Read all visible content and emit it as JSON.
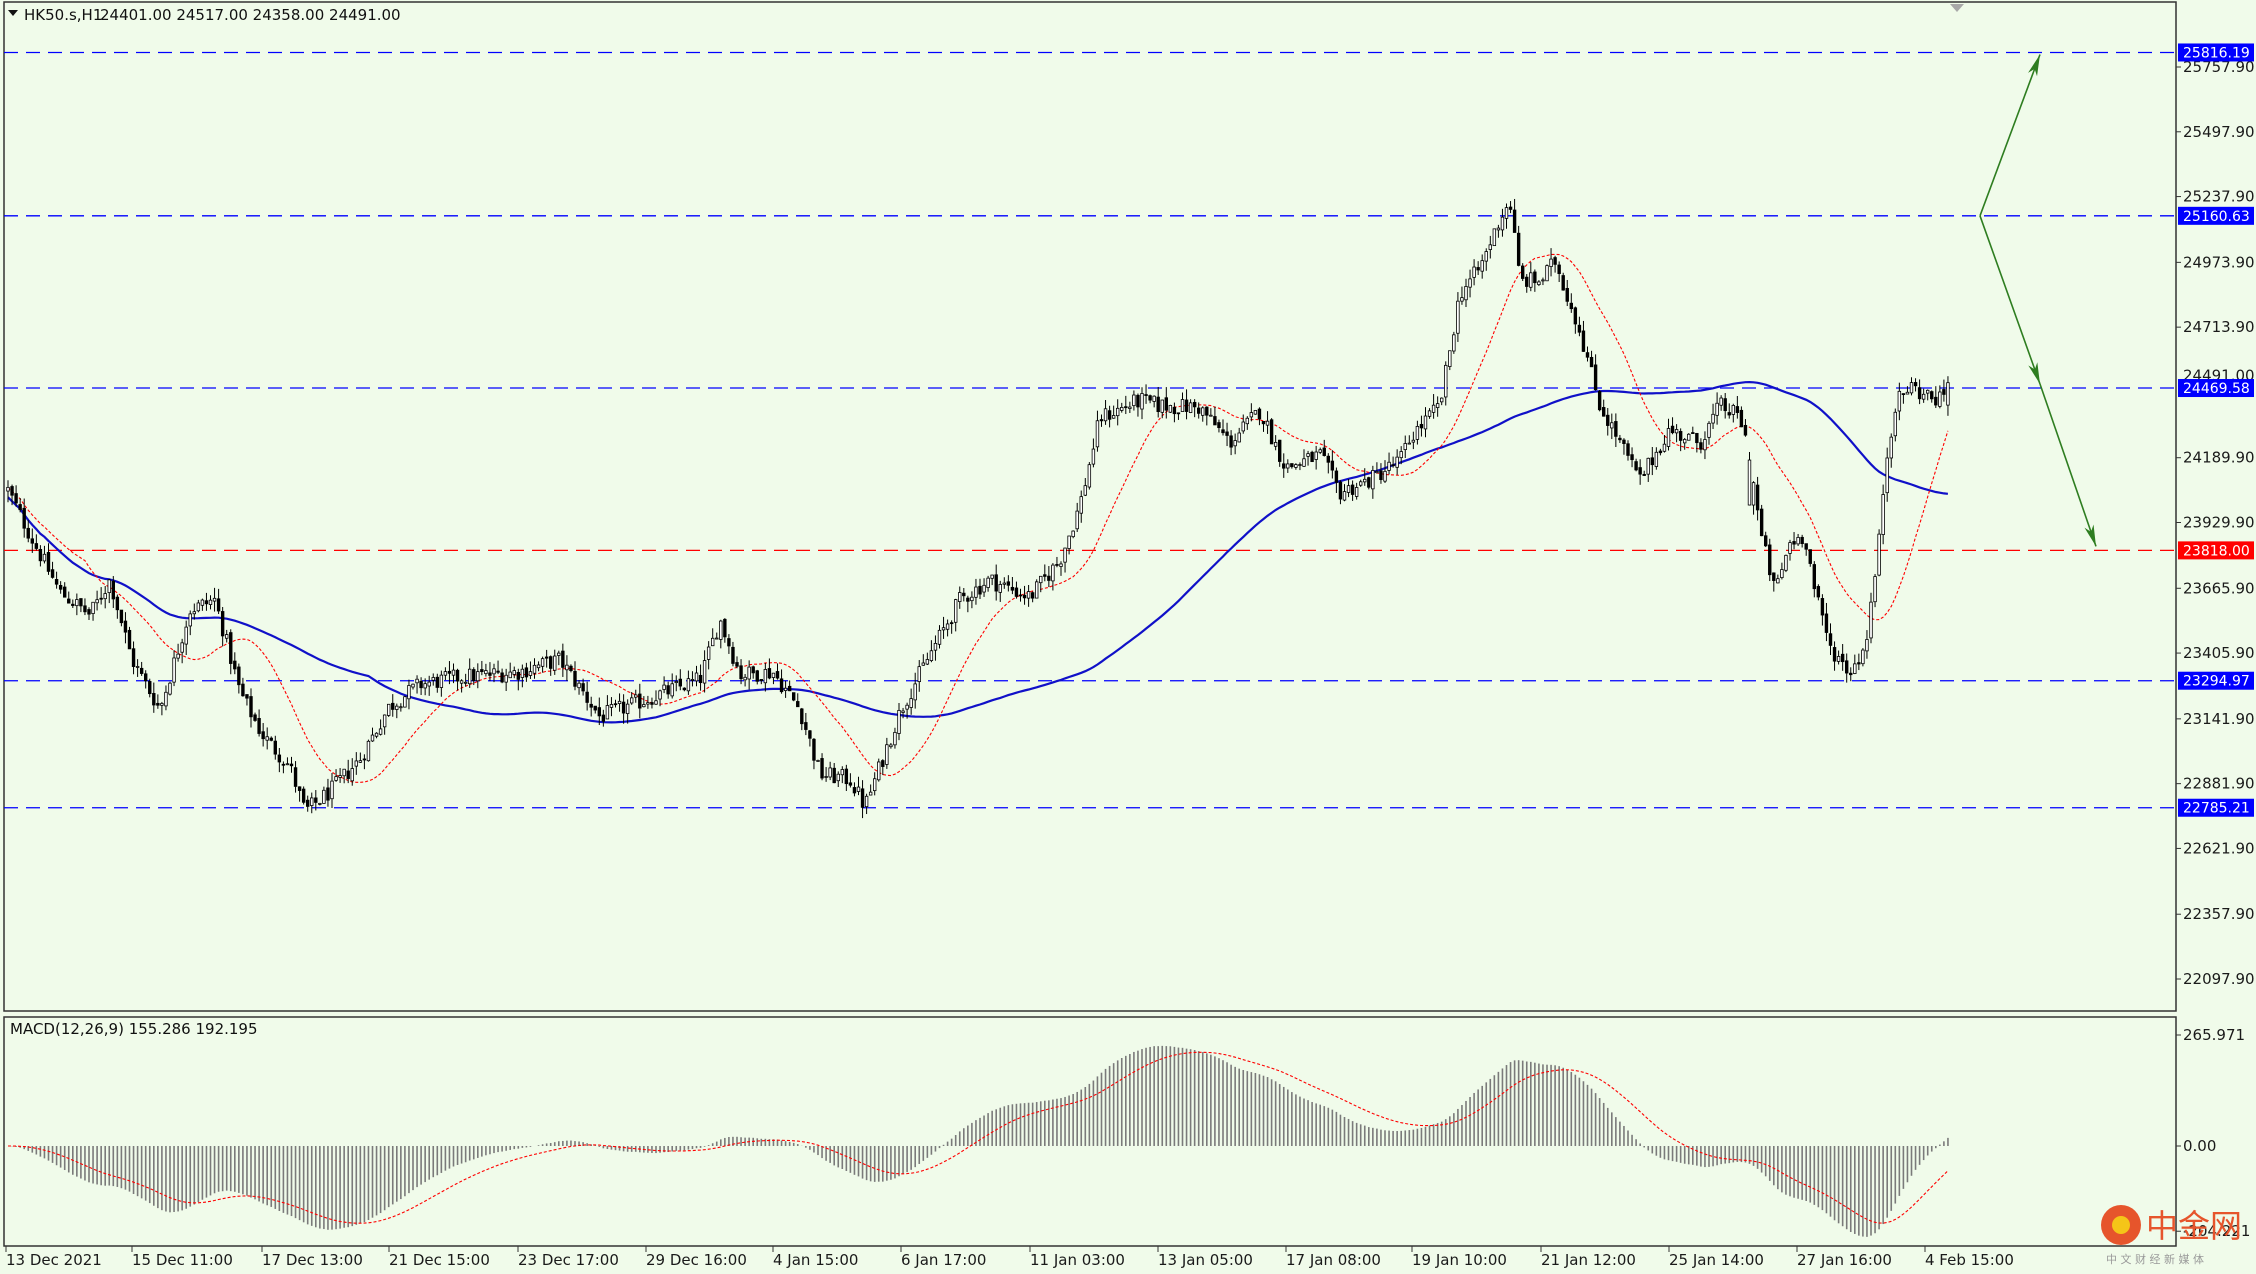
{
  "header": {
    "symbol": "HK50.s,H1",
    "ohlc": "24401.00 24517.00 24358.00 24491.00"
  },
  "macd_header": {
    "label": "MACD(12,26,9) 155.286 192.195"
  },
  "price_axis": {
    "ticks": [
      "25757.90",
      "25497.90",
      "25237.90",
      "24973.90",
      "24713.90",
      "24189.90",
      "23929.90",
      "23665.90",
      "23405.90",
      "23141.90",
      "22881.90",
      "22621.90",
      "22357.90",
      "22097.90"
    ],
    "tick_values": [
      25757.9,
      25497.9,
      25237.9,
      24973.9,
      24713.9,
      24189.9,
      23929.9,
      23665.9,
      23405.9,
      23141.9,
      22881.9,
      22621.9,
      22357.9,
      22097.9
    ],
    "current_price_label": "24491.00"
  },
  "macd_axis": {
    "ticks": [
      "265.971",
      "0.00",
      "-204.221"
    ],
    "tick_values": [
      265.971,
      0,
      -204.221
    ]
  },
  "time_axis": {
    "labels": [
      "13 Dec 2021",
      "15 Dec 11:00",
      "17 Dec 13:00",
      "21 Dec 15:00",
      "23 Dec 17:00",
      "29 Dec 16:00",
      "4 Jan 15:00",
      "6 Jan 17:00",
      "11 Jan 03:00",
      "13 Jan 05:00",
      "17 Jan 08:00",
      "19 Jan 10:00",
      "21 Jan 12:00",
      "25 Jan 14:00",
      "27 Jan 16:00",
      "4 Feb 15:00"
    ]
  },
  "levels": [
    {
      "value": 25816.19,
      "label": "25816.19",
      "color": "#0000ff",
      "style": "dashed"
    },
    {
      "value": 25160.63,
      "label": "25160.63",
      "color": "#0000ff",
      "style": "dashed"
    },
    {
      "value": 24469.58,
      "label": "24469.58",
      "color": "#0000ff",
      "style": "dashed"
    },
    {
      "value": 23818.0,
      "label": "23818.00",
      "color": "#ff0000",
      "style": "dashed"
    },
    {
      "value": 23294.97,
      "label": "23294.97",
      "color": "#0000ff",
      "style": "dashed"
    },
    {
      "value": 22785.21,
      "label": "22785.21",
      "color": "#0000ff",
      "style": "dashed"
    }
  ],
  "colors": {
    "background": "#f0fbea",
    "candle": "#000000",
    "ma_slow": "#1010c8",
    "ma_fast": "#ff0000",
    "arrow": "#2e7d20",
    "macd_hist": "#7a7a7a",
    "macd_signal": "#ff0000"
  },
  "watermark": {
    "text": "中金网",
    "sub": "中 文 财 经 新 媒 体"
  },
  "chart_data": {
    "type": "candlestick",
    "title": "HK50.s,H1",
    "timeframe": "H1",
    "ylim": [
      21990,
      25910
    ],
    "horizontal_levels": [
      25816.19,
      25160.63,
      24469.58,
      23818.0,
      23294.97,
      22785.21
    ],
    "anchor_closes": [
      {
        "x": "13 Dec 2021",
        "close": 24060
      },
      {
        "x": "15 Dec 11:00",
        "close": 23380
      },
      {
        "x": "17 Dec 13:00",
        "close": 22830
      },
      {
        "x": "21 Dec 15:00",
        "close": 23190
      },
      {
        "x": "23 Dec 17:00",
        "close": 23330
      },
      {
        "x": "29 Dec 16:00",
        "close": 23220
      },
      {
        "x": "4 Jan 15:00",
        "close": 22920
      },
      {
        "x": "6 Jan 17:00",
        "close": 23440
      },
      {
        "x": "11 Jan 03:00",
        "close": 24350
      },
      {
        "x": "13 Jan 05:00",
        "close": 24400
      },
      {
        "x": "17 Jan 08:00",
        "close": 24000
      },
      {
        "x": "19 Jan 10:00",
        "close": 24850
      },
      {
        "x": "21 Jan 12:00",
        "close": 24600
      },
      {
        "x": "25 Jan 14:00",
        "close": 24460
      },
      {
        "x": "27 Jan 16:00",
        "close": 23400
      },
      {
        "x": "4 Feb 15:00",
        "close": 24491
      }
    ],
    "last_bar": {
      "open": 24401.0,
      "high": 24517.0,
      "low": 24358.0,
      "close": 24491.0
    },
    "indicators": [
      {
        "name": "MA slow",
        "color": "#1010c8"
      },
      {
        "name": "MA fast",
        "color": "#ff0000"
      }
    ],
    "macd": {
      "params": "12,26,9",
      "macd": 155.286,
      "signal": 192.195,
      "ylim": [
        -204.221,
        265.971
      ]
    },
    "projections": [
      {
        "from_price": 25160.63,
        "to_price": 25816.19,
        "direction": "up"
      },
      {
        "from_price": 25160.63,
        "to_price": 24469.58,
        "direction": "down"
      },
      {
        "from_price": 24469.58,
        "to_price": 23818.0,
        "direction": "down"
      }
    ],
    "grid": false,
    "legend": "none"
  }
}
